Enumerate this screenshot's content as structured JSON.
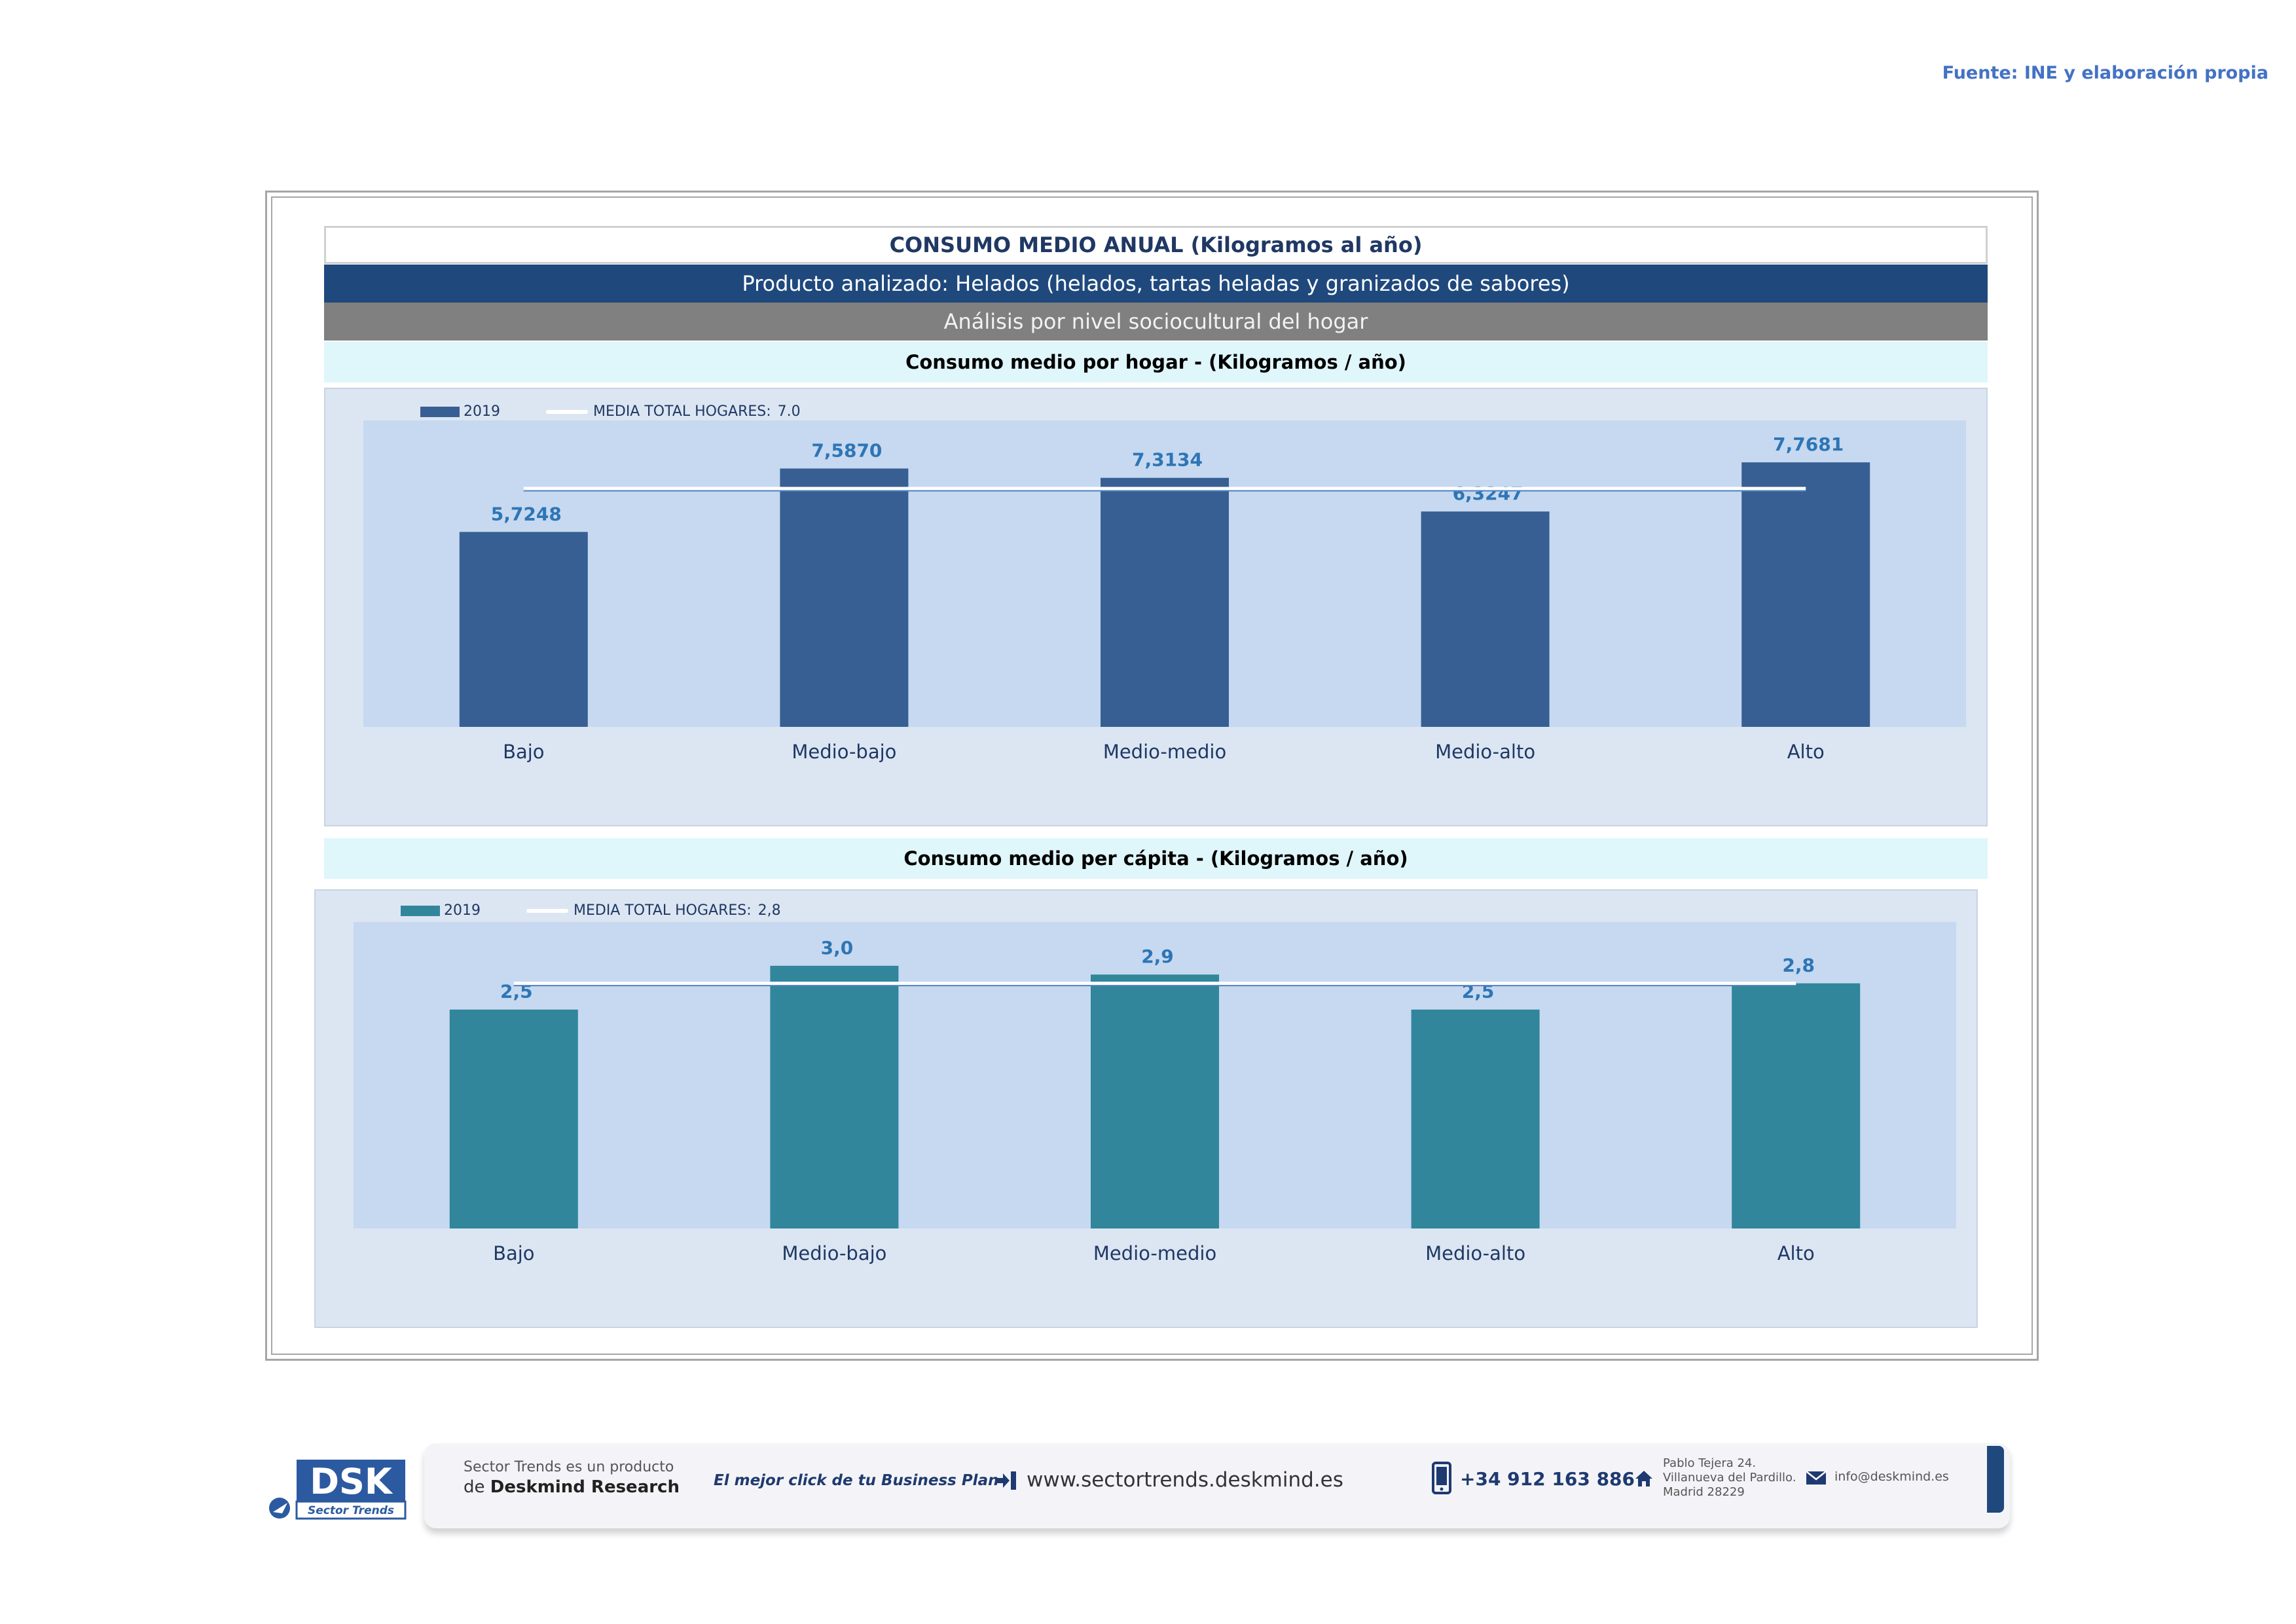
{
  "source": "Fuente: INE y elaboración propia",
  "header": {
    "title": "CONSUMO MEDIO ANUAL (Kilogramos al año)",
    "product": "Producto analizado: Helados (helados, tartas heladas y granizados de sabores)",
    "analysis": "Análisis por nivel sociocultural del hogar"
  },
  "chart_data": [
    {
      "type": "bar",
      "title": "Consumo medio por hogar -  (Kilogramos / año)",
      "categories": [
        "Bajo",
        "Medio-bajo",
        "Medio-medio",
        "Medio-alto",
        "Alto"
      ],
      "series": [
        {
          "name": "2019",
          "values": [
            5.7248,
            7.587,
            7.3134,
            6.3247,
            7.7681
          ],
          "labels": [
            "5,7248",
            "7,5870",
            "7,3134",
            "6,3247",
            "7,7681"
          ],
          "color": "#375f93"
        }
      ],
      "reference_line": {
        "name": "MEDIA TOTAL  HOGARES:",
        "value_label": "7.0",
        "value": 7.0,
        "color": "#ffffff"
      },
      "ylim": [
        0,
        9
      ],
      "grid": false,
      "legend": "top-left",
      "label_color": "#2e75b6"
    },
    {
      "type": "bar",
      "title": "Consumo medio per cápita -  (Kilogramos / año)",
      "categories": [
        "Bajo",
        "Medio-bajo",
        "Medio-medio",
        "Medio-alto",
        "Alto"
      ],
      "series": [
        {
          "name": "2019",
          "values": [
            2.5,
            3.0,
            2.9,
            2.5,
            2.8
          ],
          "labels": [
            "2,5",
            "3,0",
            "2,9",
            "2,5",
            "2,8"
          ],
          "color": "#31869b"
        }
      ],
      "reference_line": {
        "name": "MEDIA TOTAL  HOGARES:",
        "value_label": "2,8",
        "value": 2.8,
        "color": "#ffffff"
      },
      "ylim": [
        0,
        3.5
      ],
      "grid": false,
      "legend": "top-left",
      "label_color": "#2e75b6"
    }
  ],
  "footer": {
    "logo": "DSK",
    "logo_sub": "Sector Trends",
    "product_line1": "Sector Trends es un producto",
    "product_line2_prefix": "de",
    "product_line2_brand": "Deskmind Research",
    "slogan": "El mejor click de tu Business Plan",
    "website": "www.sectortrends.deskmind.es",
    "phone": "+34 912 163 886",
    "address": [
      "Pablo Tejera 24.",
      "Villanueva del Pardillo.",
      "Madrid 28229"
    ],
    "email": "info@deskmind.es",
    "accent": "#1f497d"
  }
}
